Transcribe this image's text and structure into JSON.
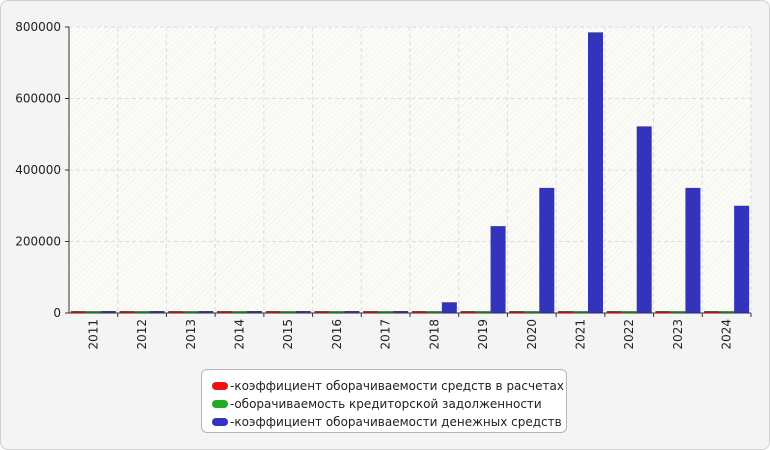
{
  "chart_data": {
    "type": "bar",
    "categories": [
      "2011",
      "2012",
      "2013",
      "2014",
      "2015",
      "2016",
      "2017",
      "2018",
      "2019",
      "2020",
      "2021",
      "2022",
      "2023",
      "2024"
    ],
    "series": [
      {
        "name": "коэффициент оборачиваемости средств в расчетах",
        "color": "#ee1111",
        "values": [
          2,
          2,
          2,
          2,
          2,
          2,
          2,
          2,
          2,
          2,
          2,
          2,
          2,
          2
        ]
      },
      {
        "name": "оборачиваемость кредиторской задолженности",
        "color": "#22aa22",
        "values": [
          2,
          2,
          2,
          2,
          2,
          2,
          2,
          2,
          2,
          2,
          2,
          2,
          2,
          2
        ]
      },
      {
        "name": "коэффициент оборачиваемости денежных средств",
        "color": "#3333bb",
        "values": [
          1000,
          1000,
          1000,
          1000,
          1000,
          1000,
          1000,
          30000,
          243000,
          350000,
          785000,
          522000,
          350000,
          300000
        ]
      }
    ],
    "ylim": [
      0,
      800000
    ],
    "yticks": [
      "0",
      "200000",
      "400000",
      "600000",
      "800000"
    ],
    "grid": true,
    "legend_position": "bottom",
    "title": "",
    "xlabel": "",
    "ylabel": ""
  },
  "legend_prefix": "- "
}
